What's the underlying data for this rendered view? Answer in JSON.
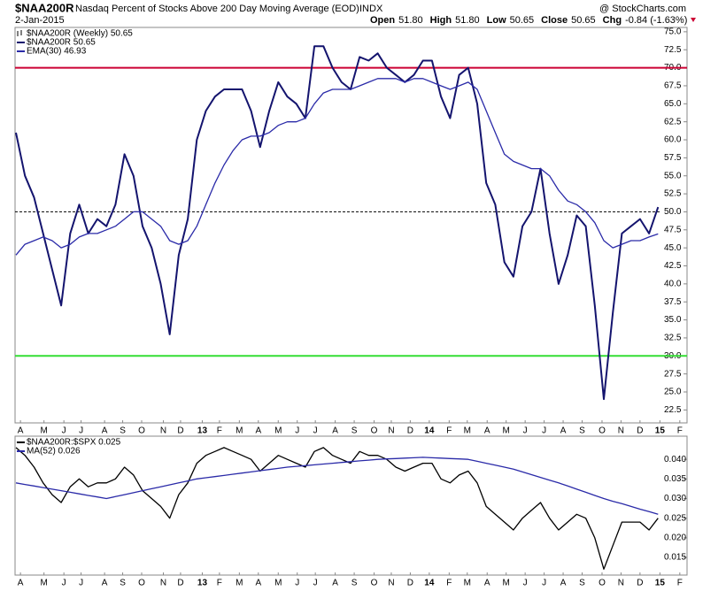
{
  "header": {
    "symbol": "$NAA200R",
    "title": "Nasdaq Percent of Stocks Above 200 Day Moving Average (EOD)",
    "exchange": "INDX",
    "credit": "@ StockCharts.com",
    "date": "2-Jan-2015",
    "quote": [
      {
        "label": "Open",
        "value": "51.80"
      },
      {
        "label": "High",
        "value": "51.80"
      },
      {
        "label": "Low",
        "value": "50.65"
      },
      {
        "label": "Close",
        "value": "50.65"
      },
      {
        "label": "Chg",
        "value": "-0.84 (-1.63%)"
      }
    ]
  },
  "chart_data": [
    {
      "type": "line",
      "legend_heading": "$NAA200R (Weekly) 50.65",
      "legend": "upper-left",
      "xlim": [
        -0.1,
        74.2
      ],
      "ylim": [
        20.7,
        75.6
      ],
      "xticks": [
        {
          "value": 0.5,
          "label": "A"
        },
        {
          "value": 3.1,
          "label": "M"
        },
        {
          "value": 5.3,
          "label": "J"
        },
        {
          "value": 7.2,
          "label": "J"
        },
        {
          "value": 9.8,
          "label": "A"
        },
        {
          "value": 11.8,
          "label": "S"
        },
        {
          "value": 13.9,
          "label": "O"
        },
        {
          "value": 16.3,
          "label": "N"
        },
        {
          "value": 18.2,
          "label": "D"
        },
        {
          "value": 20.6,
          "label": "13"
        },
        {
          "value": 22.5,
          "label": "F"
        },
        {
          "value": 24.7,
          "label": "M"
        },
        {
          "value": 26.8,
          "label": "A"
        },
        {
          "value": 29.0,
          "label": "M"
        },
        {
          "value": 31.1,
          "label": "J"
        },
        {
          "value": 33.1,
          "label": "J"
        },
        {
          "value": 35.3,
          "label": "A"
        },
        {
          "value": 37.4,
          "label": "S"
        },
        {
          "value": 39.6,
          "label": "O"
        },
        {
          "value": 41.5,
          "label": "N"
        },
        {
          "value": 43.6,
          "label": "D"
        },
        {
          "value": 45.7,
          "label": "14"
        },
        {
          "value": 47.9,
          "label": "F"
        },
        {
          "value": 49.9,
          "label": "M"
        },
        {
          "value": 52.1,
          "label": "A"
        },
        {
          "value": 54.2,
          "label": "M"
        },
        {
          "value": 56.3,
          "label": "J"
        },
        {
          "value": 58.4,
          "label": "J"
        },
        {
          "value": 60.5,
          "label": "A"
        },
        {
          "value": 62.6,
          "label": "S"
        },
        {
          "value": 64.8,
          "label": "O"
        },
        {
          "value": 66.9,
          "label": "N"
        },
        {
          "value": 69.0,
          "label": "D"
        },
        {
          "value": 71.2,
          "label": "15"
        },
        {
          "value": 73.4,
          "label": "F"
        }
      ],
      "yticks": [
        22.5,
        {
          "value": 25,
          "label": "25.0"
        },
        27.5,
        {
          "value": 30,
          "label": "30.0"
        },
        32.5,
        {
          "value": 35,
          "label": "35.0"
        },
        37.5,
        {
          "value": 40,
          "label": "40.0"
        },
        42.5,
        {
          "value": 45,
          "label": "45.0"
        },
        47.5,
        {
          "value": 50,
          "label": "50.0"
        },
        52.5,
        {
          "value": 55,
          "label": "55.0"
        },
        57.5,
        {
          "value": 60,
          "label": "60.0"
        },
        62.5,
        {
          "value": 65,
          "label": "65.0"
        },
        67.5,
        {
          "value": 70,
          "label": "70.0"
        },
        72.5,
        {
          "value": 75,
          "label": "75.0"
        }
      ],
      "hlines": [
        {
          "value": 70,
          "color": "#cc0033",
          "style": "solid"
        },
        {
          "value": 30,
          "color": "#33dd33",
          "style": "solid"
        },
        {
          "value": 50,
          "color": "#000000",
          "style": "dashed"
        }
      ],
      "series": [
        {
          "name": "$NAA200R 50.65",
          "color": "#14146e",
          "values": [
            61,
            55,
            52,
            47,
            42,
            37,
            47,
            51,
            47,
            49,
            48,
            51,
            58,
            55,
            48,
            45,
            40,
            33,
            44,
            49,
            60,
            64,
            66,
            67,
            67,
            67,
            64,
            59,
            64,
            68,
            66,
            65,
            63,
            73,
            73,
            70,
            68,
            67,
            71.5,
            71,
            72,
            70,
            69,
            68,
            69,
            71,
            71,
            66,
            63,
            69,
            70,
            65,
            54,
            51,
            43,
            41,
            48,
            50,
            56,
            47,
            40,
            44,
            49.5,
            48,
            37,
            24,
            36,
            47,
            48,
            49,
            47,
            50.65
          ]
        },
        {
          "name": "EMA(30) 46.93",
          "color": "#2a2aa8",
          "values": [
            44,
            45.5,
            46,
            46.5,
            46,
            45,
            45.5,
            46.5,
            47,
            47,
            47.5,
            48,
            49,
            50,
            50,
            49,
            48,
            46,
            45.5,
            46,
            48,
            51,
            54,
            56.5,
            58.5,
            60,
            60.5,
            60.5,
            61,
            62,
            62.5,
            62.5,
            63,
            65,
            66.5,
            67,
            67,
            67,
            67.5,
            68,
            68.5,
            68.5,
            68.5,
            68,
            68.5,
            68.5,
            68,
            67.5,
            67,
            67.5,
            68,
            67,
            64,
            61,
            58,
            57,
            56.5,
            56,
            56,
            55,
            53,
            51.5,
            51,
            50,
            48.5,
            46,
            45,
            45.5,
            46,
            46,
            46.5,
            46.93
          ]
        }
      ]
    },
    {
      "type": "line",
      "legend": "upper-left",
      "xlim": [
        -0.1,
        74.2
      ],
      "ylim": [
        0.0105,
        0.0459
      ],
      "xticks": [
        {
          "value": 0.5,
          "label": "A"
        },
        {
          "value": 3.1,
          "label": "M"
        },
        {
          "value": 5.3,
          "label": "J"
        },
        {
          "value": 7.2,
          "label": "J"
        },
        {
          "value": 9.8,
          "label": "A"
        },
        {
          "value": 11.8,
          "label": "S"
        },
        {
          "value": 13.9,
          "label": "O"
        },
        {
          "value": 16.3,
          "label": "N"
        },
        {
          "value": 18.2,
          "label": "D"
        },
        {
          "value": 20.6,
          "label": "13"
        },
        {
          "value": 22.5,
          "label": "F"
        },
        {
          "value": 24.7,
          "label": "M"
        },
        {
          "value": 26.8,
          "label": "A"
        },
        {
          "value": 29.0,
          "label": "M"
        },
        {
          "value": 31.1,
          "label": "J"
        },
        {
          "value": 33.1,
          "label": "J"
        },
        {
          "value": 35.3,
          "label": "A"
        },
        {
          "value": 37.4,
          "label": "S"
        },
        {
          "value": 39.6,
          "label": "O"
        },
        {
          "value": 41.5,
          "label": "N"
        },
        {
          "value": 43.6,
          "label": "D"
        },
        {
          "value": 45.7,
          "label": "14"
        },
        {
          "value": 47.9,
          "label": "F"
        },
        {
          "value": 49.9,
          "label": "M"
        },
        {
          "value": 52.1,
          "label": "A"
        },
        {
          "value": 54.2,
          "label": "M"
        },
        {
          "value": 56.3,
          "label": "J"
        },
        {
          "value": 58.4,
          "label": "J"
        },
        {
          "value": 60.5,
          "label": "A"
        },
        {
          "value": 62.6,
          "label": "S"
        },
        {
          "value": 64.8,
          "label": "O"
        },
        {
          "value": 66.9,
          "label": "N"
        },
        {
          "value": 69.0,
          "label": "D"
        },
        {
          "value": 71.2,
          "label": "15"
        },
        {
          "value": 73.4,
          "label": "F"
        }
      ],
      "yticks": [
        0.015,
        {
          "value": 0.02,
          "label": "0.020"
        },
        0.025,
        {
          "value": 0.03,
          "label": "0.030"
        },
        0.035,
        {
          "value": 0.04,
          "label": "0.040"
        }
      ],
      "series": [
        {
          "name": "$NAA200R:$SPX 0.025",
          "color": "#000000",
          "values": [
            0.043,
            0.041,
            0.038,
            0.034,
            0.031,
            0.029,
            0.033,
            0.035,
            0.033,
            0.034,
            0.034,
            0.035,
            0.038,
            0.036,
            0.032,
            0.03,
            0.028,
            0.025,
            0.031,
            0.034,
            0.039,
            0.041,
            0.042,
            0.043,
            0.042,
            0.041,
            0.04,
            0.037,
            0.039,
            0.041,
            0.04,
            0.039,
            0.038,
            0.042,
            0.043,
            0.041,
            0.04,
            0.039,
            0.042,
            0.041,
            0.041,
            0.04,
            0.038,
            0.037,
            0.038,
            0.039,
            0.039,
            0.035,
            0.034,
            0.036,
            0.037,
            0.034,
            0.028,
            0.026,
            0.024,
            0.022,
            0.025,
            0.027,
            0.029,
            0.025,
            0.022,
            0.024,
            0.026,
            0.025,
            0.02,
            0.012,
            0.018,
            0.024,
            0.024,
            0.024,
            0.022,
            0.025
          ]
        },
        {
          "name": "MA(52) 0.026",
          "color": "#2a2aa8",
          "values": [
            0.034,
            0.0336,
            0.0332,
            0.0328,
            0.0324,
            0.032,
            0.0316,
            0.0312,
            0.0308,
            0.0304,
            0.03,
            0.0305,
            0.031,
            0.0315,
            0.032,
            0.0325,
            0.033,
            0.0335,
            0.034,
            0.0345,
            0.035,
            0.0353,
            0.0356,
            0.0359,
            0.0362,
            0.0365,
            0.0368,
            0.0371,
            0.0374,
            0.0377,
            0.038,
            0.0382,
            0.0384,
            0.0386,
            0.0388,
            0.039,
            0.0392,
            0.0394,
            0.0396,
            0.0398,
            0.04,
            0.0401,
            0.0402,
            0.0403,
            0.0404,
            0.0405,
            0.0404,
            0.0403,
            0.0402,
            0.0401,
            0.04,
            0.0395,
            0.039,
            0.0385,
            0.038,
            0.0375,
            0.0368,
            0.0361,
            0.0354,
            0.0347,
            0.034,
            0.0332,
            0.0324,
            0.0316,
            0.0308,
            0.03,
            0.0293,
            0.0287,
            0.028,
            0.0273,
            0.0267,
            0.026
          ]
        }
      ]
    }
  ]
}
